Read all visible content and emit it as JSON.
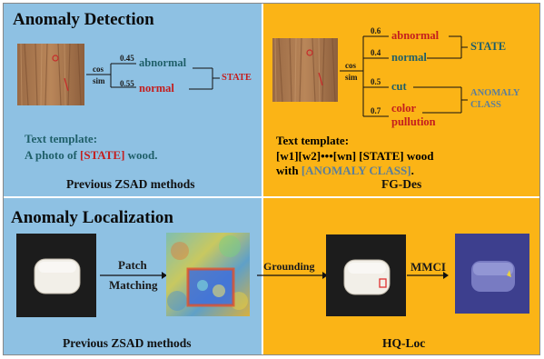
{
  "top_left": {
    "title": "Anomaly Detection",
    "cos": "cos",
    "sim": "sim",
    "score_top": "0.45",
    "score_bottom": "0.55",
    "label_top": "abnormal",
    "label_bottom": "normal",
    "state": "STATE",
    "template_title": "Text template:",
    "template_line_a": "A photo of ",
    "template_state": "[STATE]",
    "template_line_b": " wood.",
    "caption": "Previous ZSAD methods"
  },
  "top_right": {
    "cos": "cos",
    "sim": "sim",
    "s1": "0.6",
    "s2": "0.4",
    "s3": "0.5",
    "s4": "0.7",
    "l1": "abnormal",
    "l2": "normal",
    "l3": "cut",
    "l4a": "color",
    "l4b": "pullution",
    "state": "STATE",
    "anomaly_a": "ANOMALY",
    "anomaly_b": "CLASS",
    "template_title": "Text template:",
    "template_line1": "[w1][w2]•••[wn] [STATE] wood",
    "template_line2_a": "with ",
    "template_line2_b": "[ANOMALY CLASS]",
    "template_line2_c": ".",
    "caption": "FG-Des"
  },
  "bottom_left": {
    "title": "Anomaly Localization",
    "patch": "Patch",
    "matching": "Matching",
    "caption": "Previous ZSAD methods"
  },
  "bottom_right": {
    "grounding": "Grounding",
    "mmci": "MMCI",
    "caption": "HQ-Loc"
  },
  "colors": {
    "blue": "#8ec1e3",
    "orange": "#fbb416",
    "red": "#c41e1e",
    "teal": "#1f5f69"
  }
}
